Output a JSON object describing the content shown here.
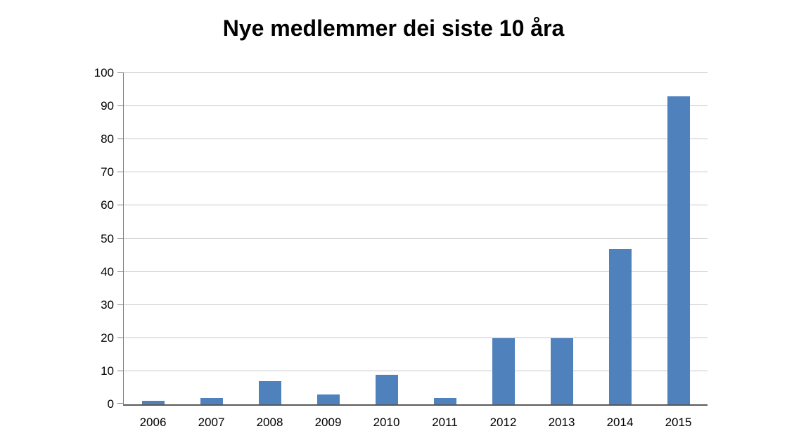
{
  "chart_data": {
    "type": "bar",
    "title": "Nye medlemmer dei siste 10 åra",
    "categories": [
      "2006",
      "2007",
      "2008",
      "2009",
      "2010",
      "2011",
      "2012",
      "2013",
      "2014",
      "2015"
    ],
    "values": [
      1,
      2,
      7,
      3,
      9,
      2,
      20,
      20,
      47,
      93
    ],
    "xlabel": "",
    "ylabel": "",
    "ylim": [
      0,
      100
    ],
    "ytick_interval": 10,
    "ytick_labels": [
      "0",
      "10",
      "20",
      "30",
      "40",
      "50",
      "60",
      "70",
      "80",
      "90",
      "100"
    ],
    "grid": true,
    "legend_position": "none",
    "colors": {
      "bar_fill": "#4f81bd",
      "gridline": "#c6c6c6",
      "axis": "#808080",
      "text": "#000000",
      "background": "#ffffff"
    }
  }
}
